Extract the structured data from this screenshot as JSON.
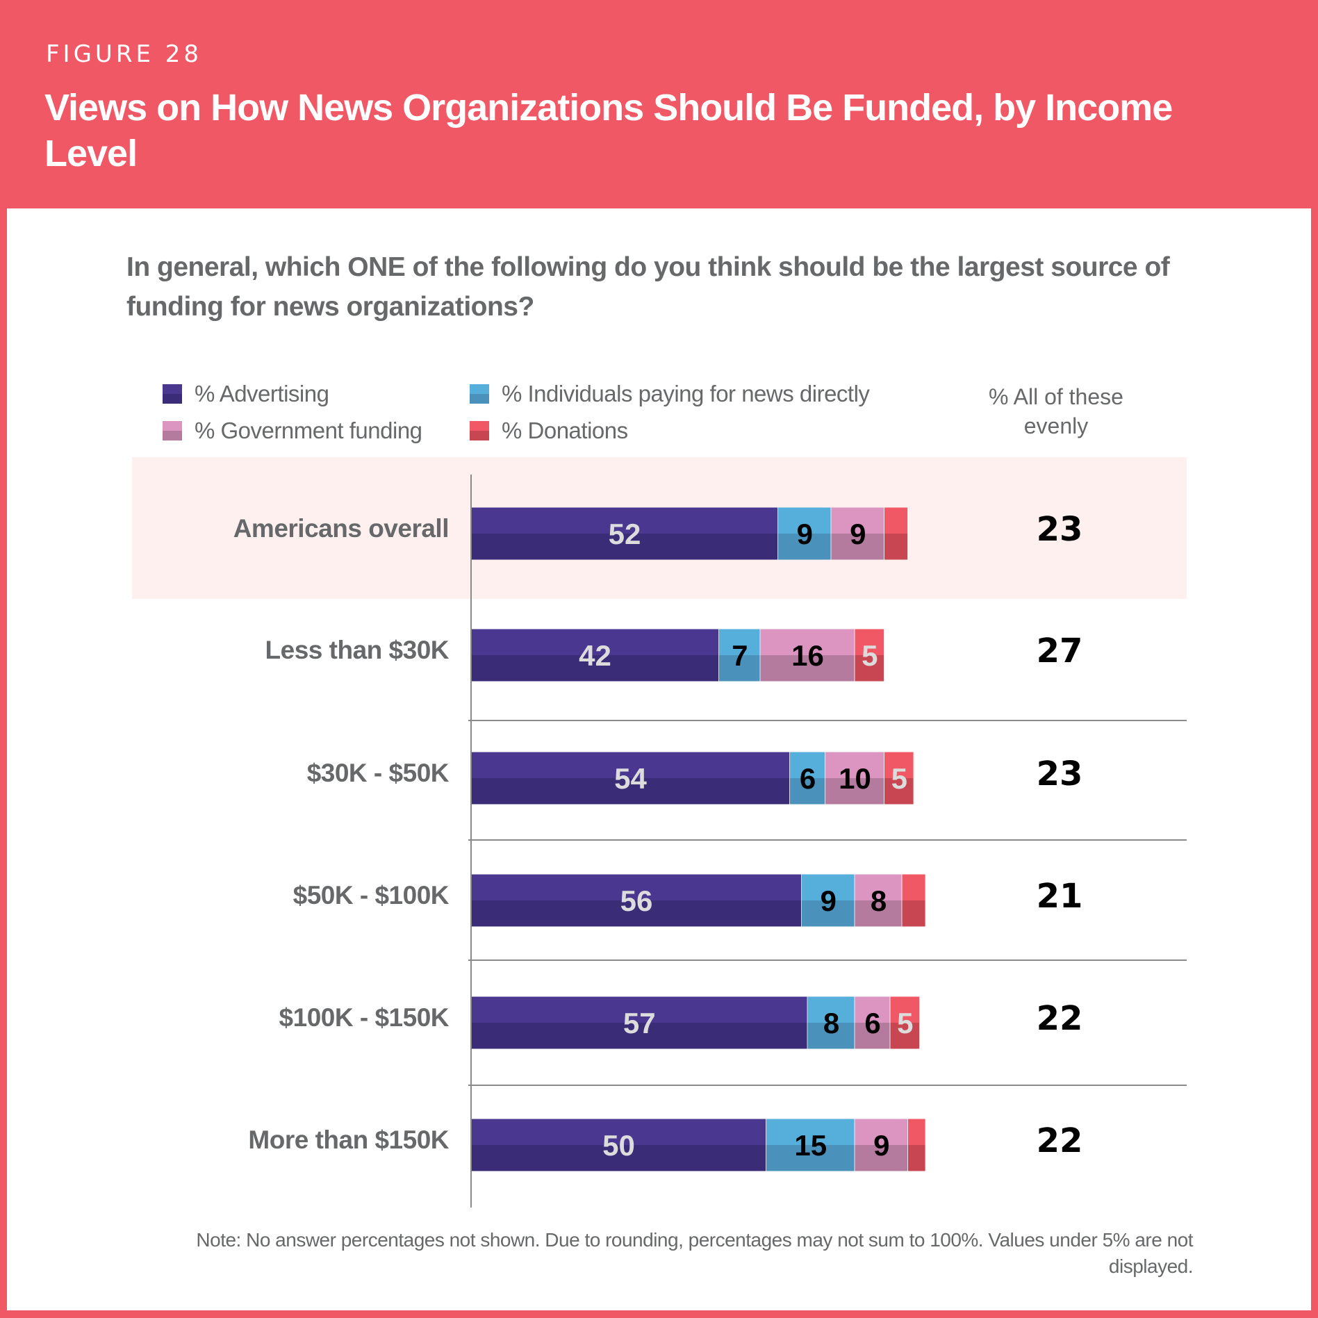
{
  "header": {
    "figure_label": "FIGURE 28",
    "title": "Views on How News Organizations Should Be Funded, by Income Level"
  },
  "question": "In general, which ONE of the following do you think should be the largest source of funding for news organizations?",
  "legend": [
    {
      "label": "% Advertising",
      "color_top": "#4a3790",
      "color_bottom": "#3b2c78"
    },
    {
      "label": "% Individuals paying for news directly",
      "color_top": "#56aedb",
      "color_bottom": "#4a92bb"
    },
    {
      "label": "% Government funding",
      "color_top": "#dc95c1",
      "color_bottom": "#b47b9e"
    },
    {
      "label": "% Donations",
      "color_top": "#f05866",
      "color_bottom": "#c84552"
    }
  ],
  "all_evenly_header": "% All of these evenly",
  "note": "Note: No answer percentages not shown. Due to rounding, percentages may not sum to 100%. Values under 5% are not displayed.",
  "colors": {
    "brand": "#f05866",
    "highlight_row": "#fef0ef",
    "text_gray": "#666869"
  },
  "chart_data": {
    "type": "bar",
    "orientation": "horizontal",
    "stacked": true,
    "title": "Views on How News Organizations Should Be Funded, by Income Level",
    "xlabel": "",
    "ylabel": "",
    "xlim": [
      0,
      100
    ],
    "grid": false,
    "legend_position": "top",
    "categories": [
      "Americans overall",
      "Less than $30K",
      "$30K - $50K",
      "$50K - $100K",
      "$100K - $150K",
      "More than $150K"
    ],
    "highlighted_category": "Americans overall",
    "series": [
      {
        "name": "% Advertising",
        "values": [
          52,
          42,
          54,
          56,
          57,
          50
        ]
      },
      {
        "name": "% Individuals paying for news directly",
        "values": [
          9,
          7,
          6,
          9,
          8,
          15
        ]
      },
      {
        "name": "% Government funding",
        "values": [
          9,
          16,
          10,
          8,
          6,
          9
        ]
      },
      {
        "name": "% Donations",
        "values": [
          4,
          5,
          5,
          4,
          5,
          3
        ]
      }
    ],
    "label_threshold": 5,
    "side_column": {
      "name": "% All of these evenly",
      "values": [
        23,
        27,
        23,
        21,
        22,
        22
      ]
    }
  }
}
